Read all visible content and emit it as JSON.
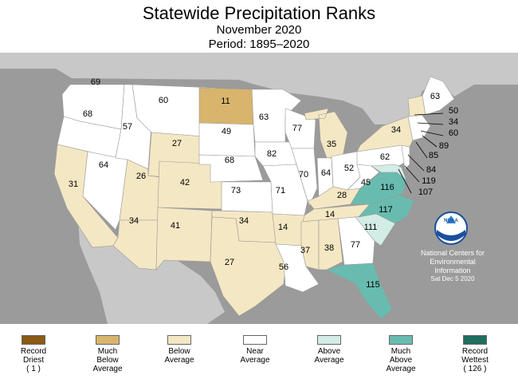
{
  "title": "Statewide Precipitation Ranks",
  "subtitle": "November 2020",
  "period": "Period: 1895–2020",
  "colors": {
    "ocean": "#9b9b9b",
    "land": "#c8c8c8",
    "record_driest": "#8b5a14",
    "much_below": "#d8b46c",
    "below": "#f4e7c3",
    "near": "#ffffff",
    "above": "#d2ede6",
    "much_above": "#68bcaf",
    "record_wettest": "#1f6e5e"
  },
  "legend": [
    {
      "label": "Record\nDriest\n( 1 )",
      "color": "#8b5a14"
    },
    {
      "label": "Much\nBelow\nAverage",
      "color": "#d8b46c"
    },
    {
      "label": "Below\nAverage",
      "color": "#f4e7c3"
    },
    {
      "label": "Near\nAverage",
      "color": "#ffffff"
    },
    {
      "label": "Above\nAverage",
      "color": "#d2ede6"
    },
    {
      "label": "Much\nAbove\nAverage",
      "color": "#68bcaf"
    },
    {
      "label": "Record\nWettest\n( 126 )",
      "color": "#1f6e5e"
    }
  ],
  "states": [
    {
      "state": "WA",
      "rank": "69",
      "category": "near"
    },
    {
      "state": "OR",
      "rank": "68",
      "category": "near"
    },
    {
      "state": "CA",
      "rank": "31",
      "category": "below"
    },
    {
      "state": "ID",
      "rank": "57",
      "category": "near"
    },
    {
      "state": "NV",
      "rank": "64",
      "category": "near"
    },
    {
      "state": "MT",
      "rank": "60",
      "category": "near"
    },
    {
      "state": "WY",
      "rank": "27",
      "category": "below"
    },
    {
      "state": "UT",
      "rank": "26",
      "category": "below"
    },
    {
      "state": "AZ",
      "rank": "34",
      "category": "below"
    },
    {
      "state": "CO",
      "rank": "42",
      "category": "below"
    },
    {
      "state": "NM",
      "rank": "41",
      "category": "below"
    },
    {
      "state": "ND",
      "rank": "11",
      "category": "much_below"
    },
    {
      "state": "SD",
      "rank": "49",
      "category": "near"
    },
    {
      "state": "NE",
      "rank": "68",
      "category": "near"
    },
    {
      "state": "KS",
      "rank": "73",
      "category": "near"
    },
    {
      "state": "OK",
      "rank": "34",
      "category": "below"
    },
    {
      "state": "TX",
      "rank": "27",
      "category": "below"
    },
    {
      "state": "MN",
      "rank": "63",
      "category": "near"
    },
    {
      "state": "IA",
      "rank": "82",
      "category": "near"
    },
    {
      "state": "MO",
      "rank": "71",
      "category": "near"
    },
    {
      "state": "AR",
      "rank": "14",
      "category": "below"
    },
    {
      "state": "LA",
      "rank": "56",
      "category": "near"
    },
    {
      "state": "WI",
      "rank": "77",
      "category": "near"
    },
    {
      "state": "IL",
      "rank": "70",
      "category": "near"
    },
    {
      "state": "MI",
      "rank": "35",
      "category": "below"
    },
    {
      "state": "IN",
      "rank": "64",
      "category": "near"
    },
    {
      "state": "OH",
      "rank": "52",
      "category": "near"
    },
    {
      "state": "KY",
      "rank": "28",
      "category": "below"
    },
    {
      "state": "TN",
      "rank": "14",
      "category": "below"
    },
    {
      "state": "MS",
      "rank": "37",
      "category": "below"
    },
    {
      "state": "AL",
      "rank": "38",
      "category": "below"
    },
    {
      "state": "GA",
      "rank": "77",
      "category": "near"
    },
    {
      "state": "FL",
      "rank": "115",
      "category": "much_above"
    },
    {
      "state": "SC",
      "rank": "111",
      "category": "above"
    },
    {
      "state": "NC",
      "rank": "117",
      "category": "much_above"
    },
    {
      "state": "VA",
      "rank": "116",
      "category": "much_above"
    },
    {
      "state": "WV",
      "rank": "45",
      "category": "near"
    },
    {
      "state": "PA",
      "rank": "62",
      "category": "near"
    },
    {
      "state": "NY",
      "rank": "34",
      "category": "below"
    },
    {
      "state": "ME",
      "rank": "63",
      "category": "near"
    }
  ],
  "callouts": [
    {
      "state": "VT",
      "rank": "50",
      "category": "near"
    },
    {
      "state": "NH",
      "rank": "34",
      "category": "below"
    },
    {
      "state": "MA",
      "rank": "60",
      "category": "near"
    },
    {
      "state": "RI",
      "rank": "89",
      "category": "above"
    },
    {
      "state": "CT",
      "rank": "85",
      "category": "near"
    },
    {
      "state": "NJ",
      "rank": "84",
      "category": "near"
    },
    {
      "state": "DE",
      "rank": "119",
      "category": "much_above"
    },
    {
      "state": "MD",
      "rank": "107",
      "category": "above"
    }
  ],
  "noaa": {
    "logo_text": "NOAA",
    "line1": "National Centers for",
    "line2": "Environmental",
    "line3": "Information",
    "date": "Sat Dec  5 2020"
  }
}
